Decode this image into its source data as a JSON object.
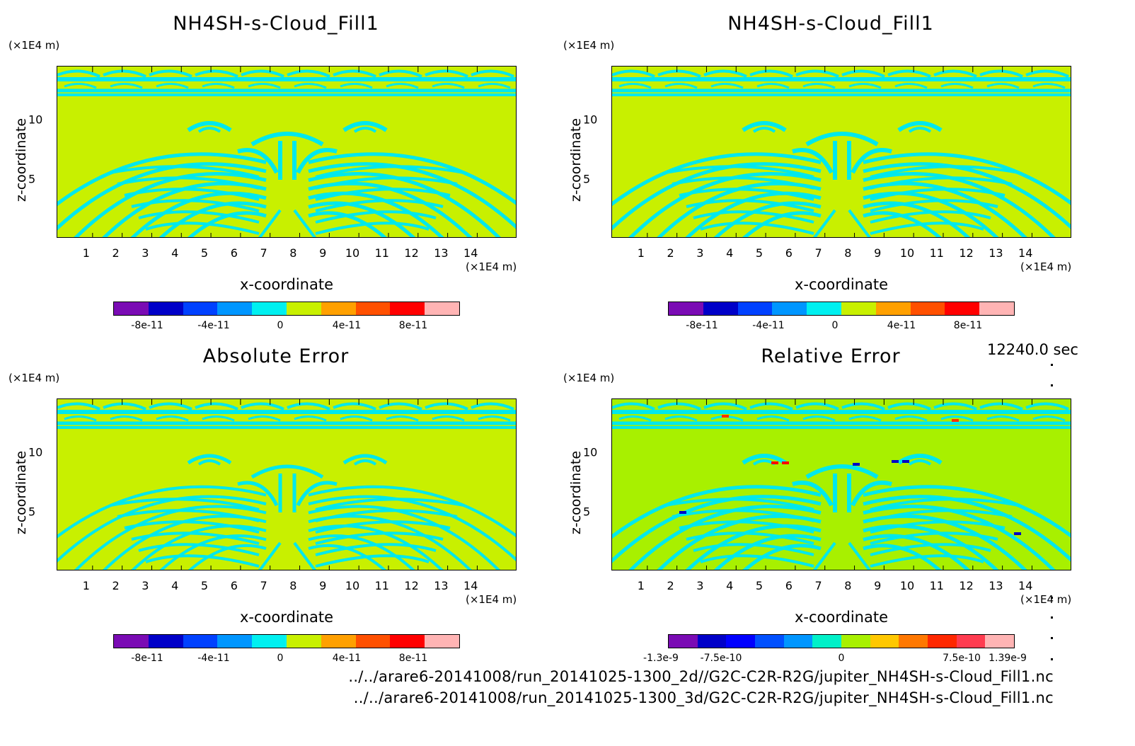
{
  "timestamp": "12240.0 sec",
  "paths": [
    "../../arare6-20141008/run_20141025-1300_2d//G2C-C2R-R2G/jupiter_NH4SH-s-Cloud_Fill1.nc",
    "../../arare6-20141008/run_20141025-1300_3d/G2C-C2R-R2G/jupiter_NH4SH-s-Cloud_Fill1.nc"
  ],
  "colors": {
    "background": "#c8f000",
    "feature": "#00e8ec",
    "relative_background": "#a8f000"
  },
  "chart_data": [
    {
      "type": "heatmap",
      "title": "NH4SH-s-Cloud_Fill1",
      "xlabel": "x-coordinate",
      "ylabel": "z-coordinate",
      "xunit": "(×1E4 m)",
      "yunit": "(×1E4 m)",
      "xticks": [
        "1",
        "2",
        "3",
        "4",
        "5",
        "6",
        "7",
        "8",
        "9",
        "10",
        "11",
        "12",
        "13",
        "14"
      ],
      "yticks": [
        "5",
        "10"
      ],
      "xlim": [
        0,
        15
      ],
      "ylim": [
        0,
        15
      ],
      "colorbar": {
        "colors": [
          "#7a0bb4",
          "#0000c8",
          "#0041ff",
          "#0096ff",
          "#00f0f0",
          "#c8f000",
          "#ffa000",
          "#ff5000",
          "#ff0000",
          "#ffb4b4"
        ],
        "labels": [
          "-8e-11",
          "-4e-11",
          "0",
          "4e-11",
          "8e-11"
        ]
      }
    },
    {
      "type": "heatmap",
      "title": "NH4SH-s-Cloud_Fill1",
      "xlabel": "x-coordinate",
      "ylabel": "z-coordinate",
      "xunit": "(×1E4 m)",
      "yunit": "(×1E4 m)",
      "xticks": [
        "1",
        "2",
        "3",
        "4",
        "5",
        "6",
        "7",
        "8",
        "9",
        "10",
        "11",
        "12",
        "13",
        "14"
      ],
      "yticks": [
        "5",
        "10"
      ],
      "xlim": [
        0,
        15
      ],
      "ylim": [
        0,
        15
      ],
      "colorbar": {
        "colors": [
          "#7a0bb4",
          "#0000c8",
          "#0041ff",
          "#0096ff",
          "#00f0f0",
          "#c8f000",
          "#ffa000",
          "#ff5000",
          "#ff0000",
          "#ffb4b4"
        ],
        "labels": [
          "-8e-11",
          "-4e-11",
          "0",
          "4e-11",
          "8e-11"
        ]
      }
    },
    {
      "type": "heatmap",
      "title": "Absolute Error",
      "xlabel": "x-coordinate",
      "ylabel": "z-coordinate",
      "xunit": "(×1E4 m)",
      "yunit": "(×1E4 m)",
      "xticks": [
        "1",
        "2",
        "3",
        "4",
        "5",
        "6",
        "7",
        "8",
        "9",
        "10",
        "11",
        "12",
        "13",
        "14"
      ],
      "yticks": [
        "5",
        "10"
      ],
      "xlim": [
        0,
        15
      ],
      "ylim": [
        0,
        15
      ],
      "colorbar": {
        "colors": [
          "#7a0bb4",
          "#0000c8",
          "#0041ff",
          "#0096ff",
          "#00f0f0",
          "#c8f000",
          "#ffa000",
          "#ff5000",
          "#ff0000",
          "#ffb4b4"
        ],
        "labels": [
          "-8e-11",
          "-4e-11",
          "0",
          "4e-11",
          "8e-11"
        ]
      }
    },
    {
      "type": "heatmap",
      "title": "Relative Error",
      "xlabel": "x-coordinate",
      "ylabel": "z-coordinate",
      "xunit": "(×1E4 m)",
      "yunit": "(×1E4 m)",
      "xticks": [
        "1",
        "2",
        "3",
        "4",
        "5",
        "6",
        "7",
        "8",
        "9",
        "10",
        "11",
        "12",
        "13",
        "14"
      ],
      "yticks": [
        "5",
        "10"
      ],
      "xlim": [
        0,
        15
      ],
      "ylim": [
        0,
        15
      ],
      "colorbar": {
        "colors": [
          "#7a0bb4",
          "#0000c8",
          "#0000ff",
          "#0050ff",
          "#0096ff",
          "#00f0c8",
          "#a8f000",
          "#ffc800",
          "#ff7800",
          "#ff2800",
          "#ff3c50",
          "#ffb4b4"
        ],
        "labels": [
          "-1.3e-9",
          "-7.5e-10",
          "0",
          "7.5e-10",
          "1.39e-9"
        ]
      }
    }
  ]
}
